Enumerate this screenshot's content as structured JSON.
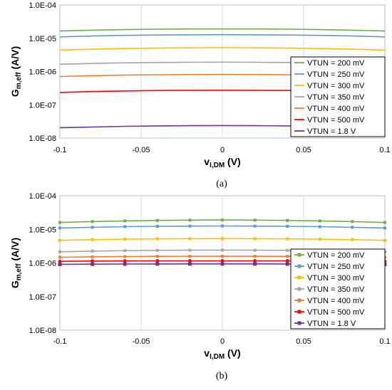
{
  "chart_data": [
    {
      "type": "line",
      "caption": "(a)",
      "xlabel_main": "v",
      "xlabel_sub": "I,DM",
      "xlabel_unit": " (V)",
      "ylabel_main": "G",
      "ylabel_sub": "m,eff",
      "ylabel_unit": " (A/V)",
      "xlim": [
        -0.1,
        0.1
      ],
      "ylim": [
        1e-08,
        0.0001
      ],
      "yscale": "log",
      "x_ticks": [
        "-0.1",
        "-0.05",
        "0",
        "0.05",
        "0.1"
      ],
      "y_ticks": [
        "1.0E-04",
        "1.0E-05",
        "1.0E-06",
        "1.0E-07",
        "1.0E-08"
      ],
      "grid": "vertical",
      "legend": "right",
      "markers": false,
      "x": [
        -0.1,
        -0.08,
        -0.06,
        -0.04,
        -0.02,
        0,
        0.02,
        0.04,
        0.06,
        0.08,
        0.1
      ],
      "series": [
        {
          "name": "VTUN = 200 mV",
          "color": "#70ad47",
          "values": [
            1.65e-05,
            1.75e-05,
            1.82e-05,
            1.87e-05,
            1.9e-05,
            1.9e-05,
            1.9e-05,
            1.87e-05,
            1.82e-05,
            1.75e-05,
            1.65e-05
          ]
        },
        {
          "name": "VTUN = 250 mV",
          "color": "#5b9bd5",
          "values": [
            1.1e-05,
            1.17e-05,
            1.22e-05,
            1.25e-05,
            1.27e-05,
            1.28e-05,
            1.27e-05,
            1.25e-05,
            1.22e-05,
            1.17e-05,
            1.1e-05
          ]
        },
        {
          "name": "VTUN = 300 mV",
          "color": "#ffc000",
          "values": [
            4.4e-06,
            4.7e-06,
            4.9e-06,
            5.05e-06,
            5.15e-06,
            5.2e-06,
            5.15e-06,
            5.05e-06,
            4.9e-06,
            4.7e-06,
            4.4e-06
          ]
        },
        {
          "name": "VTUN = 350 mV",
          "color": "#a5a5a5",
          "values": [
            1.65e-06,
            1.75e-06,
            1.82e-06,
            1.87e-06,
            1.9e-06,
            1.92e-06,
            1.9e-06,
            1.87e-06,
            1.82e-06,
            1.75e-06,
            1.65e-06
          ]
        },
        {
          "name": "VTUN = 400 mV",
          "color": "#ed7d31",
          "values": [
            7.1e-07,
            7.5e-07,
            7.8e-07,
            8e-07,
            8.15e-07,
            8.2e-07,
            8.15e-07,
            8e-07,
            7.8e-07,
            7.5e-07,
            7.1e-07
          ]
        },
        {
          "name": "VTUN = 500 mV",
          "color": "#ff0000",
          "values": [
            2.35e-07,
            2.5e-07,
            2.6e-07,
            2.68e-07,
            2.72e-07,
            2.74e-07,
            2.72e-07,
            2.68e-07,
            2.6e-07,
            2.5e-07,
            2.35e-07
          ]
        },
        {
          "name": "VTUN = 1.8 V",
          "color": "#7030a0",
          "values": [
            2.05e-08,
            2.15e-08,
            2.25e-08,
            2.32e-08,
            2.36e-08,
            2.38e-08,
            2.36e-08,
            2.32e-08,
            2.25e-08,
            2.15e-08,
            2.05e-08
          ]
        }
      ]
    },
    {
      "type": "line",
      "caption": "(b)",
      "xlabel_main": "v",
      "xlabel_sub": "I,DM",
      "xlabel_unit": " (V)",
      "ylabel_main": "G",
      "ylabel_sub": "m,eff",
      "ylabel_unit": " (A/V)",
      "xlim": [
        -0.1,
        0.1
      ],
      "ylim": [
        1e-08,
        0.0001
      ],
      "yscale": "log",
      "x_ticks": [
        "-0.1",
        "-0.05",
        "0",
        "0.05",
        "0.1"
      ],
      "y_ticks": [
        "1.0E-04",
        "1.0E-05",
        "1.0E-06",
        "1.0E-07",
        "1.0E-08"
      ],
      "grid": "vertical",
      "legend": "right",
      "markers": true,
      "x": [
        -0.1,
        -0.08,
        -0.06,
        -0.04,
        -0.02,
        0,
        0.02,
        0.04,
        0.06,
        0.08,
        0.1
      ],
      "series": [
        {
          "name": "VTUN = 200 mV",
          "color": "#70ad47",
          "values": [
            1.6e-05,
            1.7e-05,
            1.78e-05,
            1.84e-05,
            1.88e-05,
            1.9e-05,
            1.88e-05,
            1.84e-05,
            1.78e-05,
            1.7e-05,
            1.6e-05
          ]
        },
        {
          "name": "VTUN = 250 mV",
          "color": "#5b9bd5",
          "values": [
            1.1e-05,
            1.15e-05,
            1.2e-05,
            1.23e-05,
            1.25e-05,
            1.26e-05,
            1.25e-05,
            1.23e-05,
            1.2e-05,
            1.15e-05,
            1.1e-05
          ]
        },
        {
          "name": "VTUN = 300 mV",
          "color": "#ffc000",
          "values": [
            4.7e-06,
            4.95e-06,
            5.1e-06,
            5.2e-06,
            5.28e-06,
            5.3e-06,
            5.28e-06,
            5.2e-06,
            5.1e-06,
            4.95e-06,
            4.7e-06
          ]
        },
        {
          "name": "VTUN = 350 mV",
          "color": "#a5a5a5",
          "values": [
            2.15e-06,
            2.25e-06,
            2.32e-06,
            2.37e-06,
            2.4e-06,
            2.42e-06,
            2.4e-06,
            2.37e-06,
            2.32e-06,
            2.25e-06,
            2.15e-06
          ]
        },
        {
          "name": "VTUN = 400 mV",
          "color": "#ed7d31",
          "values": [
            1.48e-06,
            1.52e-06,
            1.55e-06,
            1.57e-06,
            1.58e-06,
            1.58e-06,
            1.58e-06,
            1.57e-06,
            1.55e-06,
            1.52e-06,
            1.48e-06
          ]
        },
        {
          "name": "VTUN = 500 mV",
          "color": "#ff0000",
          "values": [
            1.12e-06,
            1.14e-06,
            1.15e-06,
            1.16e-06,
            1.16e-06,
            1.16e-06,
            1.16e-06,
            1.16e-06,
            1.15e-06,
            1.14e-06,
            1.12e-06
          ]
        },
        {
          "name": "VTUN = 1.8 V",
          "color": "#7030a0",
          "values": [
            9.1e-07,
            9.2e-07,
            9.3e-07,
            9.35e-07,
            9.38e-07,
            9.4e-07,
            9.38e-07,
            9.35e-07,
            9.3e-07,
            9.2e-07,
            9.1e-07
          ]
        }
      ]
    }
  ]
}
